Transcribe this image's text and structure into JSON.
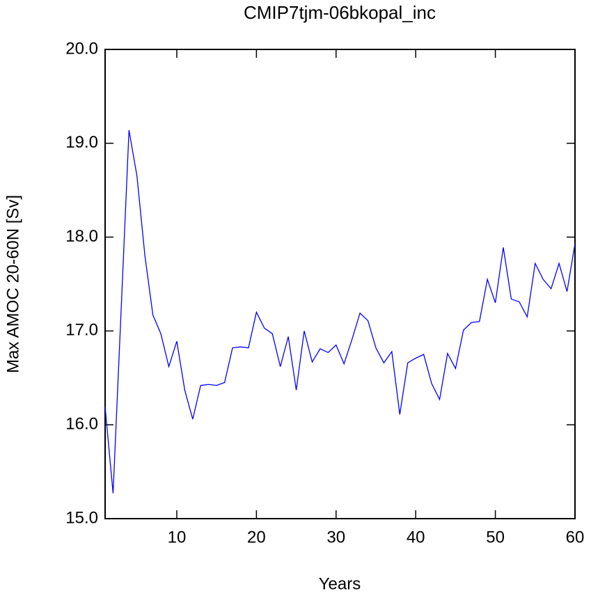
{
  "chart_data": {
    "type": "line",
    "title": "CMIP7tjm-06bkopal_inc",
    "x_label": "Years",
    "y_label": "Max AMOC 20-60N [Sv]",
    "x": [
      1,
      2,
      3,
      4,
      5,
      6,
      7,
      8,
      9,
      10,
      11,
      12,
      13,
      14,
      15,
      16,
      17,
      18,
      19,
      20,
      21,
      22,
      23,
      24,
      25,
      26,
      27,
      28,
      29,
      30,
      31,
      32,
      33,
      34,
      35,
      36,
      37,
      38,
      39,
      40,
      41,
      42,
      43,
      44,
      45,
      46,
      47,
      48,
      49,
      50,
      51,
      52,
      53,
      54,
      55,
      56,
      57,
      58,
      59,
      60
    ],
    "series": [
      {
        "name": "Max AMOC",
        "color": "#0000ff",
        "values": [
          16.19,
          15.27,
          17.2,
          19.14,
          18.65,
          17.8,
          17.17,
          16.97,
          16.62,
          16.89,
          16.37,
          16.06,
          16.42,
          16.43,
          16.42,
          16.45,
          16.82,
          16.83,
          16.82,
          17.2,
          17.03,
          16.97,
          16.62,
          16.94,
          16.37,
          17.0,
          16.67,
          16.81,
          16.77,
          16.85,
          16.65,
          16.91,
          17.19,
          17.11,
          16.82,
          16.66,
          16.78,
          16.11,
          16.66,
          16.71,
          16.75,
          16.44,
          16.27,
          16.76,
          16.6,
          17.01,
          17.09,
          17.1,
          17.55,
          17.3,
          17.89,
          17.34,
          17.31,
          17.15,
          17.72,
          17.55,
          17.45,
          17.72,
          17.42,
          17.93
        ]
      }
    ],
    "xlim": [
      1,
      60
    ],
    "xticks": [
      10,
      20,
      30,
      40,
      50,
      60
    ],
    "ylim": [
      15,
      20
    ],
    "yticks": [
      {
        "value": 15,
        "label": "15.0"
      },
      {
        "value": 16,
        "label": "16.0"
      },
      {
        "value": 17,
        "label": "17.0"
      },
      {
        "value": 18,
        "label": "18.0"
      },
      {
        "value": 19,
        "label": "19.0"
      },
      {
        "value": 20,
        "label": "20.0"
      }
    ]
  }
}
